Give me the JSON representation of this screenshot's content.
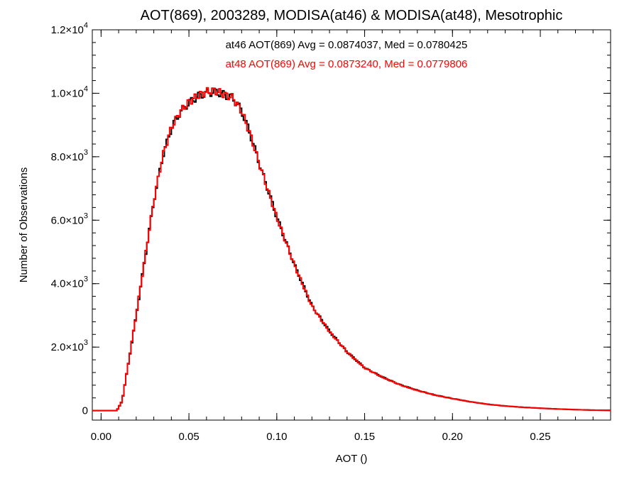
{
  "chart_data": {
    "type": "histogram",
    "title": "AOT(869), 2003289, MODISA(at46) & MODISA(at48), Mesotrophic",
    "xlabel": "AOT ()",
    "ylabel": "Number of Observations",
    "xlim": [
      -0.005,
      0.29
    ],
    "ylim": [
      -300,
      12000
    ],
    "xticks": [
      0.0,
      0.05,
      0.1,
      0.15,
      0.2,
      0.25
    ],
    "xtick_labels": [
      "0.00",
      "0.05",
      "0.10",
      "0.15",
      "0.20",
      "0.25"
    ],
    "yticks": [
      {
        "value": 0,
        "mantissa": "0",
        "exponent": ""
      },
      {
        "value": 2000,
        "mantissa": "2.0×10",
        "exponent": "3"
      },
      {
        "value": 4000,
        "mantissa": "4.0×10",
        "exponent": "3"
      },
      {
        "value": 6000,
        "mantissa": "6.0×10",
        "exponent": "3"
      },
      {
        "value": 8000,
        "mantissa": "8.0×10",
        "exponent": "3"
      },
      {
        "value": 10000,
        "mantissa": "1.0×10",
        "exponent": "4"
      },
      {
        "value": 12000,
        "mantissa": "1.2×10",
        "exponent": "4"
      }
    ],
    "grid": false,
    "bin_width": 0.001,
    "series": [
      {
        "name": "at46",
        "color": "#000000",
        "stats_text": "at46 AOT(869) Avg = 0.0874037, Med = 0.0780425",
        "x": [
          -0.005,
          0.009,
          0.012,
          0.015,
          0.02,
          0.025,
          0.03,
          0.035,
          0.04,
          0.045,
          0.05,
          0.055,
          0.06,
          0.065,
          0.07,
          0.075,
          0.08,
          0.085,
          0.09,
          0.1,
          0.11,
          0.12,
          0.13,
          0.14,
          0.15,
          0.16,
          0.17,
          0.18,
          0.19,
          0.2,
          0.21,
          0.22,
          0.23,
          0.24,
          0.25,
          0.26,
          0.27,
          0.28,
          0.29
        ],
        "y": [
          0,
          0,
          300,
          1300,
          3000,
          4800,
          6600,
          8000,
          8900,
          9400,
          9700,
          9900,
          10000,
          10050,
          9950,
          9850,
          9450,
          8700,
          7800,
          6100,
          4600,
          3300,
          2500,
          1850,
          1350,
          1060,
          820,
          640,
          490,
          380,
          280,
          200,
          145,
          105,
          75,
          50,
          30,
          15,
          8
        ]
      },
      {
        "name": "at48",
        "color": "#ff0000",
        "stats_text": "at48 AOT(869) Avg = 0.0873240, Med = 0.0779806",
        "x": [
          -0.005,
          0.009,
          0.012,
          0.015,
          0.02,
          0.025,
          0.03,
          0.035,
          0.04,
          0.045,
          0.05,
          0.055,
          0.06,
          0.065,
          0.07,
          0.075,
          0.08,
          0.085,
          0.09,
          0.1,
          0.11,
          0.12,
          0.13,
          0.14,
          0.15,
          0.16,
          0.17,
          0.18,
          0.19,
          0.2,
          0.21,
          0.22,
          0.23,
          0.24,
          0.25,
          0.26,
          0.27,
          0.28,
          0.29
        ],
        "y": [
          0,
          0,
          310,
          1320,
          3020,
          4820,
          6610,
          8010,
          8920,
          9420,
          9720,
          9920,
          10050,
          10080,
          9960,
          9860,
          9440,
          8690,
          7790,
          6090,
          4590,
          3290,
          2490,
          1845,
          1345,
          1055,
          815,
          635,
          487,
          378,
          279,
          199,
          144,
          104,
          74,
          49,
          29,
          14,
          7
        ]
      }
    ]
  }
}
